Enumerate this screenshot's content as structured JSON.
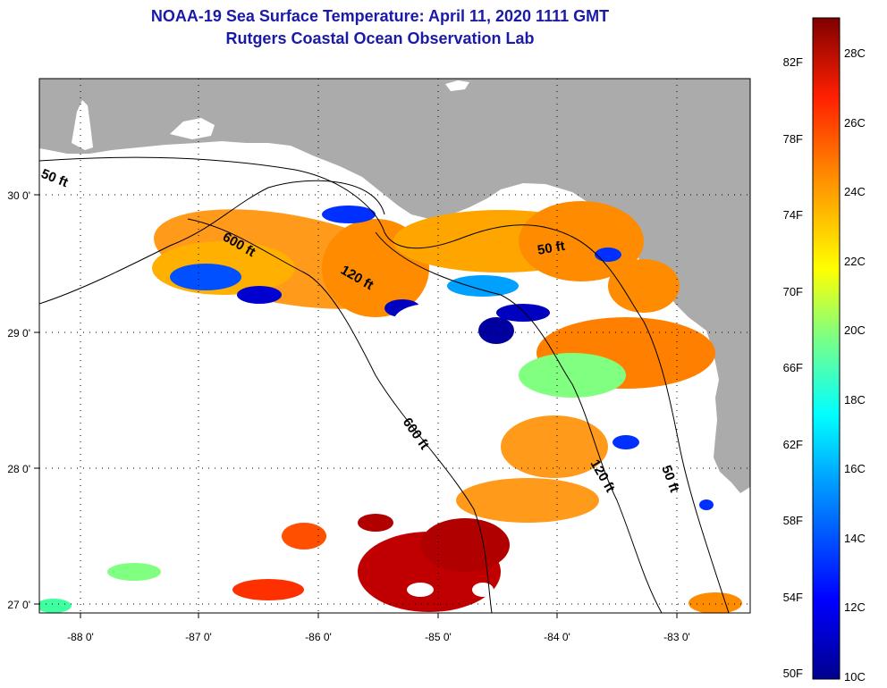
{
  "title": {
    "line1": "NOAA-19 Sea Surface Temperature:  April 11, 2020 1111 GMT",
    "line2": "Rutgers Coastal Ocean Observation Lab"
  },
  "map": {
    "lon_ticks": [
      "-88 0'",
      "-87 0'",
      "-86 0'",
      "-85 0'",
      "-84 0'",
      "-83 0'"
    ],
    "lat_ticks": [
      "30 0'",
      "29 0'",
      "28 0'",
      "27 0'"
    ],
    "lon_range": [
      -88.35,
      -82.35
    ],
    "lat_range": [
      26.95,
      30.85
    ],
    "land_color": "#ababab",
    "no_data_color": "#ffffff",
    "isobath_labels": [
      "50 ft",
      "600 ft",
      "120 ft",
      "50 ft",
      "600 ft",
      "120 ft",
      "50 ft"
    ]
  },
  "colorbar": {
    "fahrenheit_labels": [
      "82F",
      "78F",
      "74F",
      "70F",
      "66F",
      "62F",
      "58F",
      "54F",
      "50F"
    ],
    "celsius_labels": [
      "28C",
      "26C",
      "24C",
      "22C",
      "20C",
      "18C",
      "16C",
      "14C",
      "12C",
      "10C"
    ],
    "range_c": [
      10,
      29
    ],
    "colors": [
      "#00008f",
      "#0000ff",
      "#00a0ff",
      "#00ffff",
      "#80ff80",
      "#ffff00",
      "#ff8c00",
      "#ff2000",
      "#800000"
    ]
  }
}
